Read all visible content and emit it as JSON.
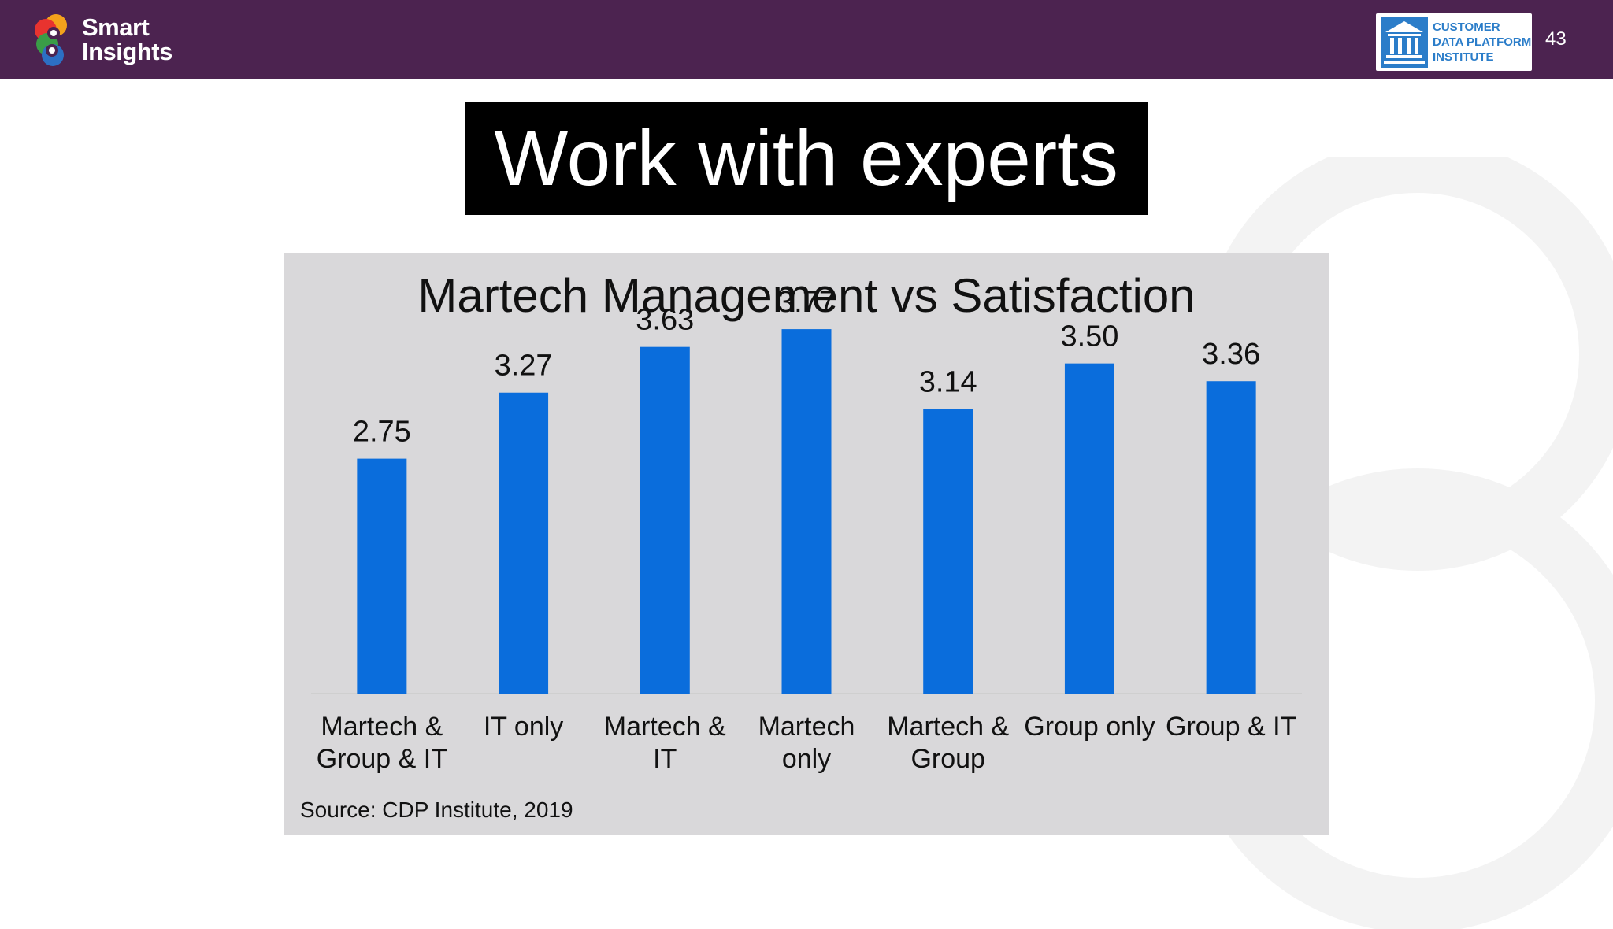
{
  "brand": {
    "name_line1": "Smart",
    "name_line2": "Insights"
  },
  "partner": {
    "line1": "CUSTOMER",
    "line2": "DATA PLATFORM",
    "line3": "INSTITUTE"
  },
  "page_number": "43",
  "slide_title": "Work with experts",
  "colors": {
    "header": "#4c2350",
    "bar": "#0a6ddc",
    "panel": "#d9d8da"
  },
  "chart_data": {
    "type": "bar",
    "title": "Martech Management vs Satisfaction",
    "categories": [
      [
        "Martech &",
        "Group & IT"
      ],
      [
        "IT only"
      ],
      [
        "Martech &",
        "IT"
      ],
      [
        "Martech",
        "only"
      ],
      [
        "Martech &",
        "Group"
      ],
      [
        "Group only"
      ],
      [
        "Group & IT"
      ]
    ],
    "values": [
      2.75,
      3.27,
      3.63,
      3.77,
      3.14,
      3.5,
      3.36
    ],
    "value_labels": [
      "2.75",
      "3.27",
      "3.63",
      "3.77",
      "3.14",
      "3.50",
      "3.36"
    ],
    "ylim": [
      0.9,
      4.0
    ],
    "grid": false,
    "legend": "none",
    "source": "Source: CDP Institute, 2019"
  }
}
